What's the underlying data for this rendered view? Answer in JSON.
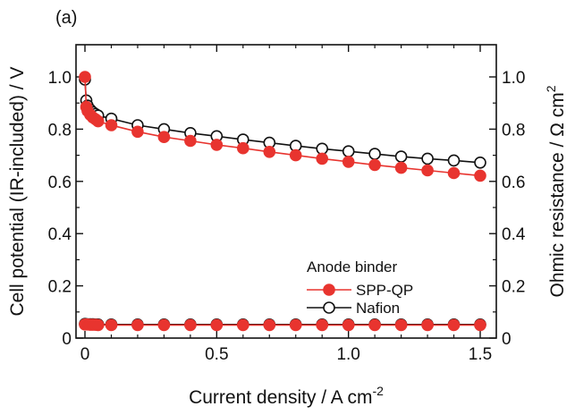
{
  "chart_data": {
    "type": "line",
    "panel_label": "(a)",
    "xlabel": "Current density / A cm",
    "xlabel_sup": "-2",
    "ylabel_left": "Cell potential (IR-included) / V",
    "ylabel_right": "Ohmic resistance / Ω cm",
    "ylabel_right_sup": "2",
    "xlim": [
      0,
      1.5
    ],
    "ylim": [
      0,
      1.0
    ],
    "x_ticks": [
      "0",
      "0.5",
      "1.0",
      "1.5"
    ],
    "y_ticks": [
      "0",
      "0.2",
      "0.4",
      "0.6",
      "0.8",
      "1.0"
    ],
    "y2_ticks": [
      "0",
      "0.2",
      "0.4",
      "0.6",
      "0.8",
      "1.0"
    ],
    "legend_title": "Anode binder",
    "legend_position": "right",
    "series": [
      {
        "name": "SPP-QP",
        "axis": "left",
        "marker": "filled-circle",
        "color": "#e8342f",
        "x": [
          0,
          0.005,
          0.01,
          0.02,
          0.03,
          0.04,
          0.05,
          0.1,
          0.2,
          0.3,
          0.4,
          0.5,
          0.6,
          0.7,
          0.8,
          0.9,
          1.0,
          1.1,
          1.2,
          1.3,
          1.4,
          1.5
        ],
        "y": [
          1.0,
          0.885,
          0.87,
          0.855,
          0.845,
          0.838,
          0.83,
          0.815,
          0.79,
          0.77,
          0.755,
          0.74,
          0.727,
          0.713,
          0.7,
          0.687,
          0.675,
          0.663,
          0.652,
          0.642,
          0.632,
          0.622
        ]
      },
      {
        "name": "Nafion",
        "axis": "left",
        "marker": "open-circle",
        "color": "#111111",
        "x": [
          0,
          0.005,
          0.01,
          0.02,
          0.03,
          0.04,
          0.05,
          0.1,
          0.2,
          0.3,
          0.4,
          0.5,
          0.6,
          0.7,
          0.8,
          0.9,
          1.0,
          1.1,
          1.2,
          1.3,
          1.4,
          1.5
        ],
        "y": [
          0.99,
          0.91,
          0.89,
          0.875,
          0.865,
          0.858,
          0.852,
          0.84,
          0.815,
          0.8,
          0.785,
          0.773,
          0.76,
          0.748,
          0.736,
          0.725,
          0.715,
          0.705,
          0.695,
          0.687,
          0.68,
          0.672
        ]
      },
      {
        "name": "SPP-QP",
        "axis": "right",
        "marker": "filled-circle",
        "color": "#e8342f",
        "x": [
          0,
          0.01,
          0.02,
          0.03,
          0.04,
          0.05,
          0.1,
          0.2,
          0.3,
          0.4,
          0.5,
          0.6,
          0.7,
          0.8,
          0.9,
          1.0,
          1.1,
          1.2,
          1.3,
          1.4,
          1.5
        ],
        "y": [
          0.052,
          0.052,
          0.051,
          0.051,
          0.051,
          0.05,
          0.05,
          0.05,
          0.05,
          0.05,
          0.05,
          0.05,
          0.05,
          0.05,
          0.05,
          0.05,
          0.05,
          0.05,
          0.05,
          0.05,
          0.05
        ]
      },
      {
        "name": "Nafion",
        "axis": "right",
        "marker": "open-circle",
        "color": "#111111",
        "x": [
          0,
          0.01,
          0.02,
          0.03,
          0.04,
          0.05,
          0.1,
          0.2,
          0.3,
          0.4,
          0.5,
          0.6,
          0.7,
          0.8,
          0.9,
          1.0,
          1.1,
          1.2,
          1.3,
          1.4,
          1.5
        ],
        "y": [
          0.054,
          0.053,
          0.053,
          0.053,
          0.052,
          0.052,
          0.052,
          0.052,
          0.052,
          0.052,
          0.052,
          0.052,
          0.052,
          0.052,
          0.052,
          0.052,
          0.052,
          0.052,
          0.052,
          0.052,
          0.052
        ]
      }
    ]
  }
}
